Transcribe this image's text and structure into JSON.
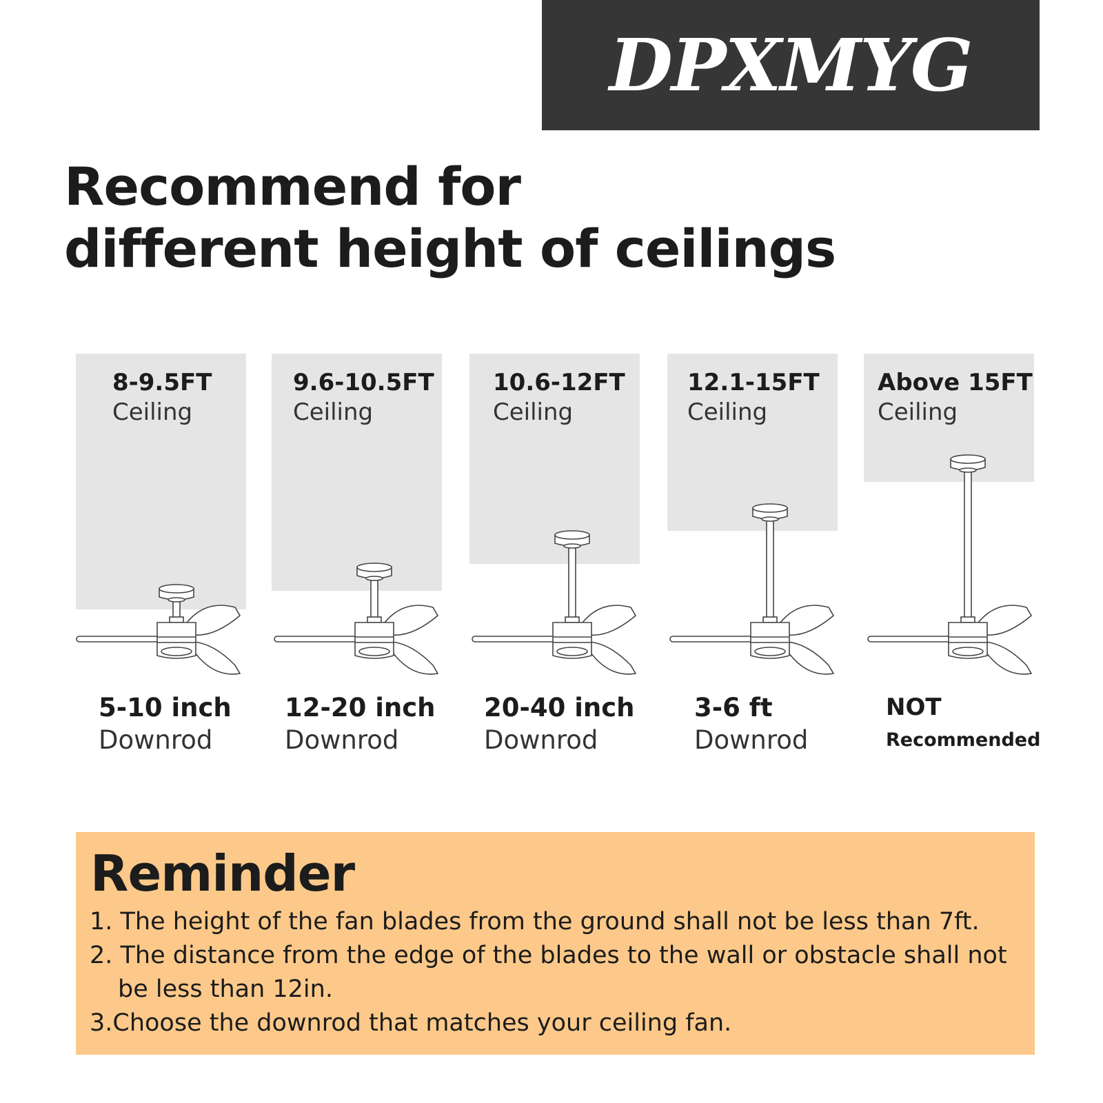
{
  "brand": {
    "logo_text": "DPXMYG",
    "banner_color": "#363636"
  },
  "title": {
    "line1": "Recommend for",
    "line2": "different height of ceilings"
  },
  "columns": [
    {
      "height": "8-9.5FT",
      "ceiling": "Ceiling",
      "downrod": "5-10 inch",
      "downrod_label": "Downrod"
    },
    {
      "height": "9.6-10.5FT",
      "ceiling": "Ceiling",
      "downrod": "12-20 inch",
      "downrod_label": "Downrod"
    },
    {
      "height": "10.6-12FT",
      "ceiling": "Ceiling",
      "downrod": "20-40 inch",
      "downrod_label": "Downrod"
    },
    {
      "height": "12.1-15FT",
      "ceiling": "Ceiling",
      "downrod": "3-6 ft",
      "downrod_label": "Downrod"
    },
    {
      "height": "Above 15FT",
      "ceiling": "Ceiling",
      "downrod": "NOT",
      "downrod_label": "Recommended"
    }
  ],
  "reminder": {
    "title": "Reminder",
    "background": "#fcc98a",
    "items": [
      "1. The height of the fan blades from the ground shall not be less than 7ft.",
      "2. The distance from the edge of the blades to the wall or obstacle shall not be less than 12in.",
      "3.Choose the downrod that matches your ceiling fan."
    ]
  }
}
